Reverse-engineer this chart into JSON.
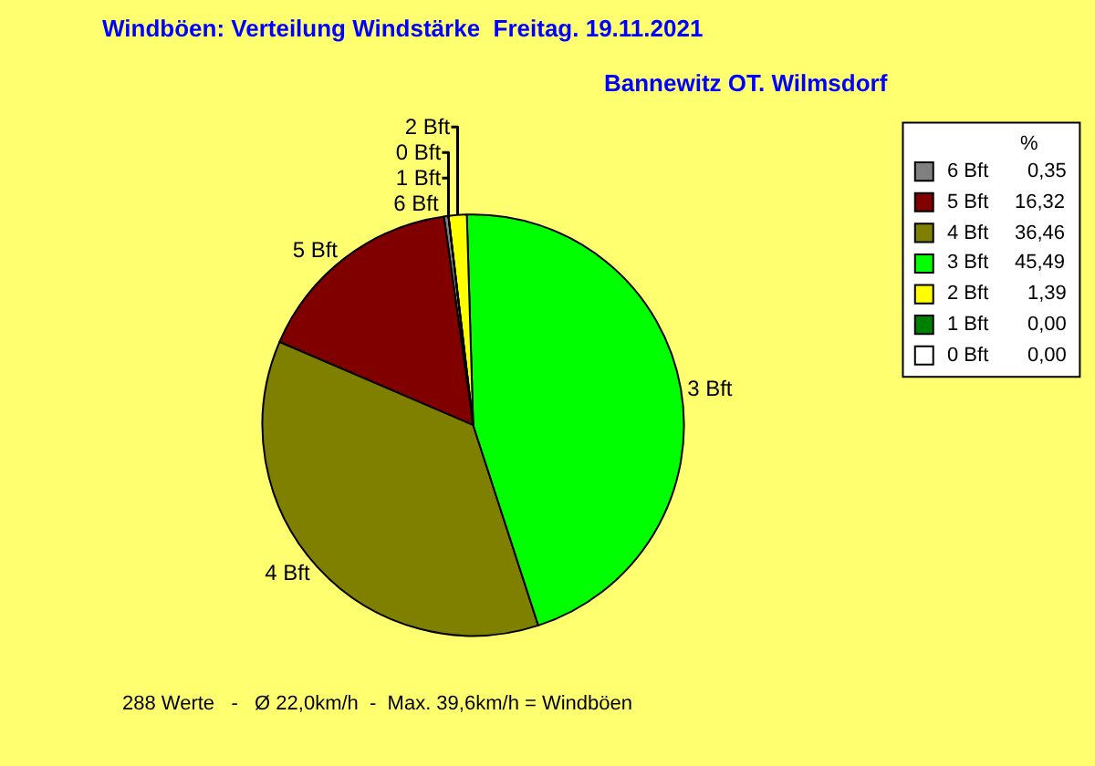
{
  "chart_data": {
    "type": "pie",
    "title": "Windböen: Verteilung Windstärke  Freitag. 19.11.2021",
    "subtitle": "Bannewitz OT. Wilmsdorf",
    "legend_title": "%",
    "categories": [
      "6 Bft",
      "5 Bft",
      "4 Bft",
      "3 Bft",
      "2 Bft",
      "1 Bft",
      "0 Bft"
    ],
    "values": [
      0.35,
      16.32,
      36.46,
      45.49,
      1.39,
      0.0,
      0.0
    ],
    "value_labels": [
      "0,35",
      "16,32",
      "36,46",
      "45,49",
      "1,39",
      "0,00",
      "0,00"
    ],
    "colors": [
      "#808080",
      "#800000",
      "#808000",
      "#00ff00",
      "#ffff00",
      "#008000",
      "#ffffff"
    ],
    "legend": "top right",
    "annotations": [
      "288 Werte   -   Ø 22,0km/h  -  Max. 39,6km/h = Windböen"
    ]
  }
}
